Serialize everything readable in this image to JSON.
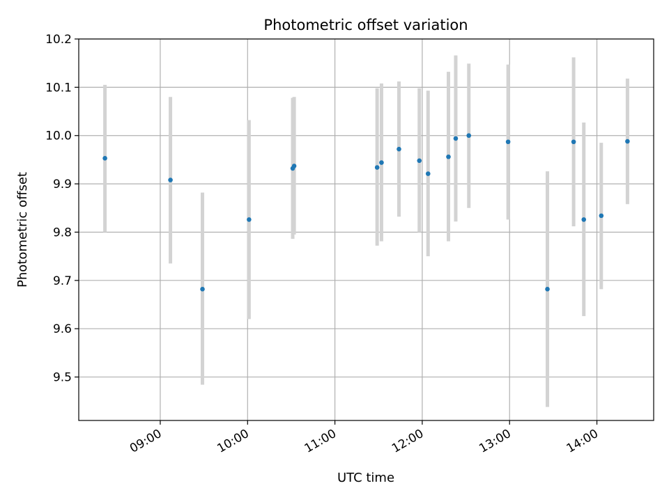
{
  "chart_data": {
    "type": "scatter",
    "title": "Photometric offset variation",
    "xlabel": "UTC time",
    "ylabel": "Photometric offset",
    "x_axis": {
      "type": "time",
      "range": [
        "08:04",
        "14:39"
      ],
      "ticks": [
        "09:00",
        "10:00",
        "11:00",
        "12:00",
        "13:00",
        "14:00"
      ]
    },
    "y_axis": {
      "range": [
        9.41,
        10.2
      ],
      "ticks": [
        "9.5",
        "9.6",
        "9.7",
        "9.8",
        "9.9",
        "10.0",
        "10.1",
        "10.2"
      ]
    },
    "grid": true,
    "colors": {
      "marker": "#1f77b4",
      "errorbar": "#d3d3d3",
      "grid": "#b0b0b0",
      "axes": "#000000"
    },
    "points": [
      {
        "t": "08:22",
        "y": 9.953,
        "y_low": 9.8,
        "y_high": 10.105
      },
      {
        "t": "09:07",
        "y": 9.908,
        "y_low": 9.735,
        "y_high": 10.08
      },
      {
        "t": "09:29",
        "y": 9.682,
        "y_low": 9.484,
        "y_high": 9.882
      },
      {
        "t": "10:01",
        "y": 9.826,
        "y_low": 9.62,
        "y_high": 10.032
      },
      {
        "t": "10:31",
        "y": 9.932,
        "y_low": 9.786,
        "y_high": 10.078
      },
      {
        "t": "10:32",
        "y": 9.937,
        "y_low": 9.795,
        "y_high": 10.08
      },
      {
        "t": "11:29",
        "y": 9.934,
        "y_low": 9.772,
        "y_high": 10.098
      },
      {
        "t": "11:32",
        "y": 9.944,
        "y_low": 9.781,
        "y_high": 10.108
      },
      {
        "t": "11:44",
        "y": 9.972,
        "y_low": 9.832,
        "y_high": 10.112
      },
      {
        "t": "11:58",
        "y": 9.948,
        "y_low": 9.8,
        "y_high": 10.098
      },
      {
        "t": "12:04",
        "y": 9.921,
        "y_low": 9.75,
        "y_high": 10.093
      },
      {
        "t": "12:18",
        "y": 9.956,
        "y_low": 9.781,
        "y_high": 10.132
      },
      {
        "t": "12:23",
        "y": 9.994,
        "y_low": 9.822,
        "y_high": 10.166
      },
      {
        "t": "12:32",
        "y": 10.0,
        "y_low": 9.85,
        "y_high": 10.149
      },
      {
        "t": "12:59",
        "y": 9.987,
        "y_low": 9.826,
        "y_high": 10.147
      },
      {
        "t": "13:26",
        "y": 9.682,
        "y_low": 9.438,
        "y_high": 9.926
      },
      {
        "t": "13:44",
        "y": 9.987,
        "y_low": 9.812,
        "y_high": 10.162
      },
      {
        "t": "13:51",
        "y": 9.826,
        "y_low": 9.626,
        "y_high": 10.027
      },
      {
        "t": "14:03",
        "y": 9.834,
        "y_low": 9.682,
        "y_high": 9.985
      },
      {
        "t": "14:21",
        "y": 9.988,
        "y_low": 9.858,
        "y_high": 10.118
      }
    ]
  }
}
